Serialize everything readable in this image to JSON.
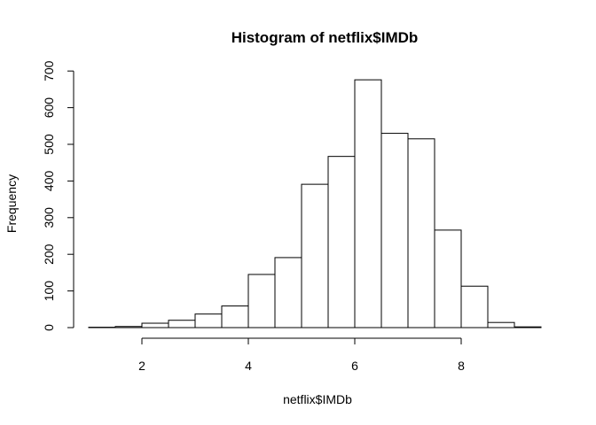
{
  "chart_data": {
    "type": "histogram",
    "title": "Histogram of netflix$IMDb",
    "xlabel": "netflix$IMDb",
    "ylabel": "Frequency",
    "bin_edges": [
      1.0,
      1.5,
      2.0,
      2.5,
      3.0,
      3.5,
      4.0,
      4.5,
      5.0,
      5.5,
      6.0,
      6.5,
      7.0,
      7.5,
      8.0,
      8.5,
      9.0,
      9.5
    ],
    "values": [
      1,
      3,
      12,
      20,
      37,
      59,
      145,
      191,
      391,
      467,
      676,
      530,
      515,
      266,
      113,
      14,
      2
    ],
    "x_ticks": [
      2,
      4,
      6,
      8
    ],
    "y_ticks": [
      0,
      100,
      200,
      300,
      400,
      500,
      600,
      700
    ],
    "xlim": [
      1.0,
      9.5
    ],
    "ylim": [
      0,
      700
    ],
    "bar_fill": "#ffffff",
    "bar_stroke": "#000000",
    "grid": false,
    "legend": "none"
  }
}
